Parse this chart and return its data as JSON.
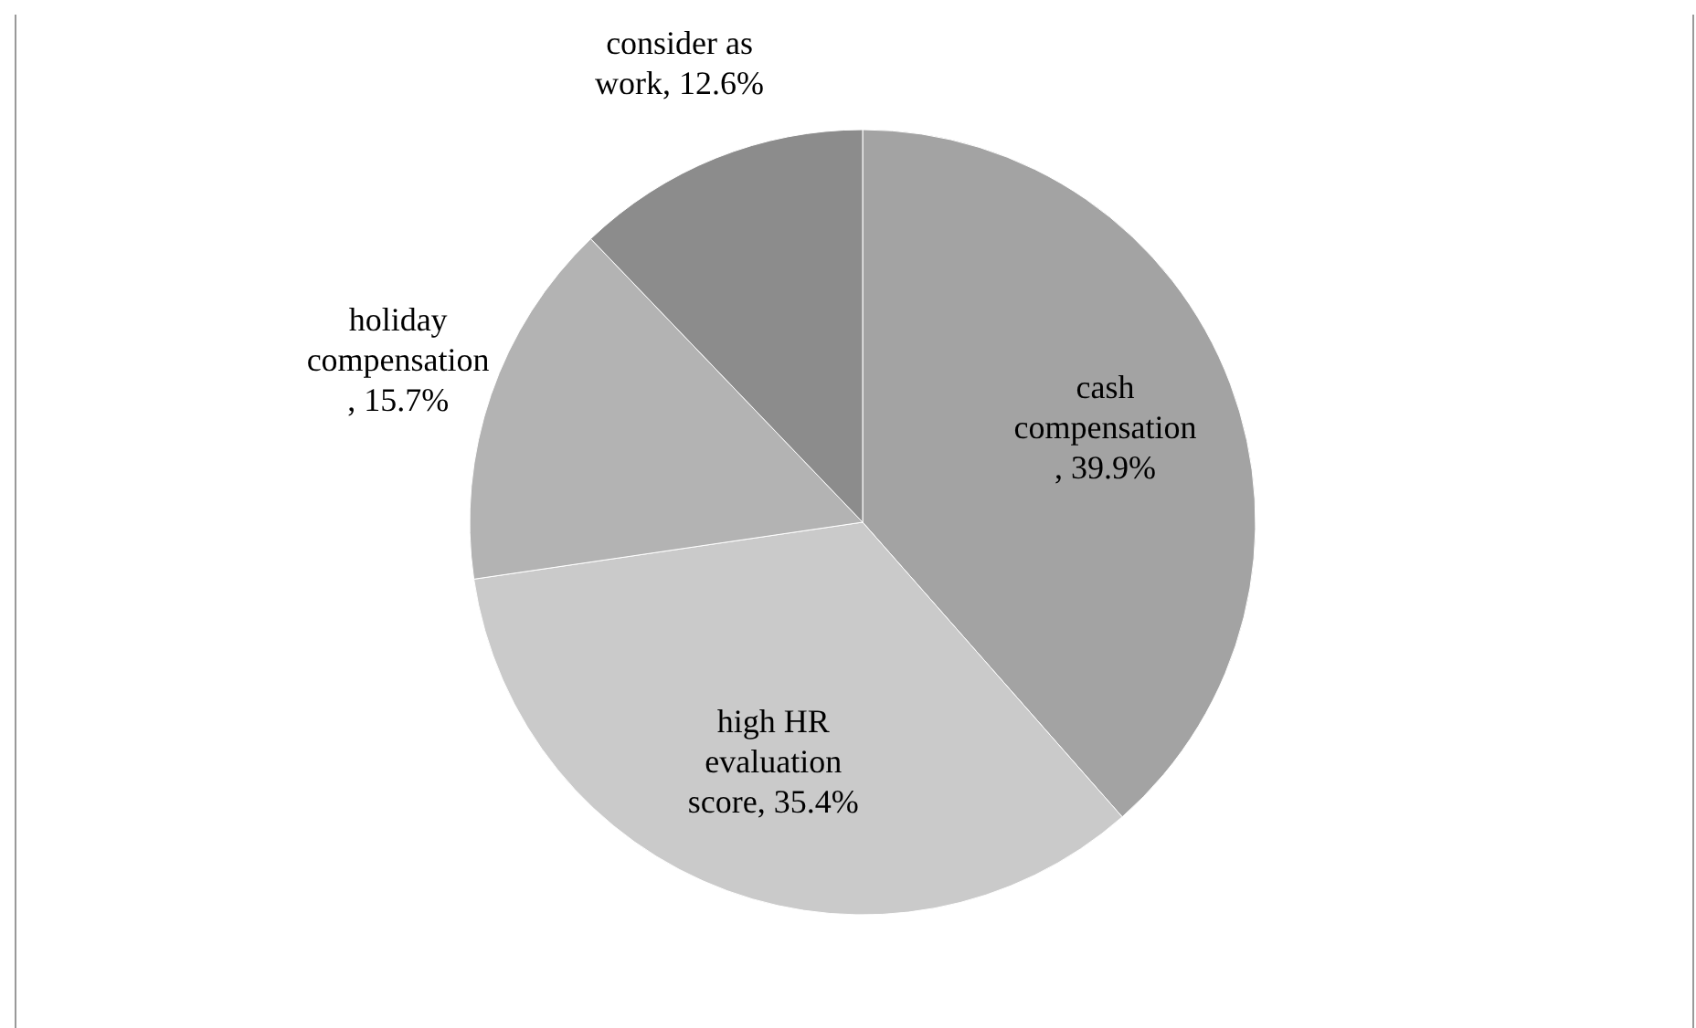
{
  "chart_data": {
    "type": "pie",
    "categories": [
      "cash compensation",
      "high HR evaluation score",
      "holiday compensation",
      "consider as work"
    ],
    "values": [
      39.9,
      35.4,
      15.7,
      12.6
    ],
    "value_labels": [
      ", 39.9%",
      ", 35.4%",
      ", 15.7%",
      ", 12.6%"
    ],
    "colors": [
      "#a3a3a3",
      "#cacaca",
      "#b3b3b3",
      "#8c8c8c"
    ]
  }
}
